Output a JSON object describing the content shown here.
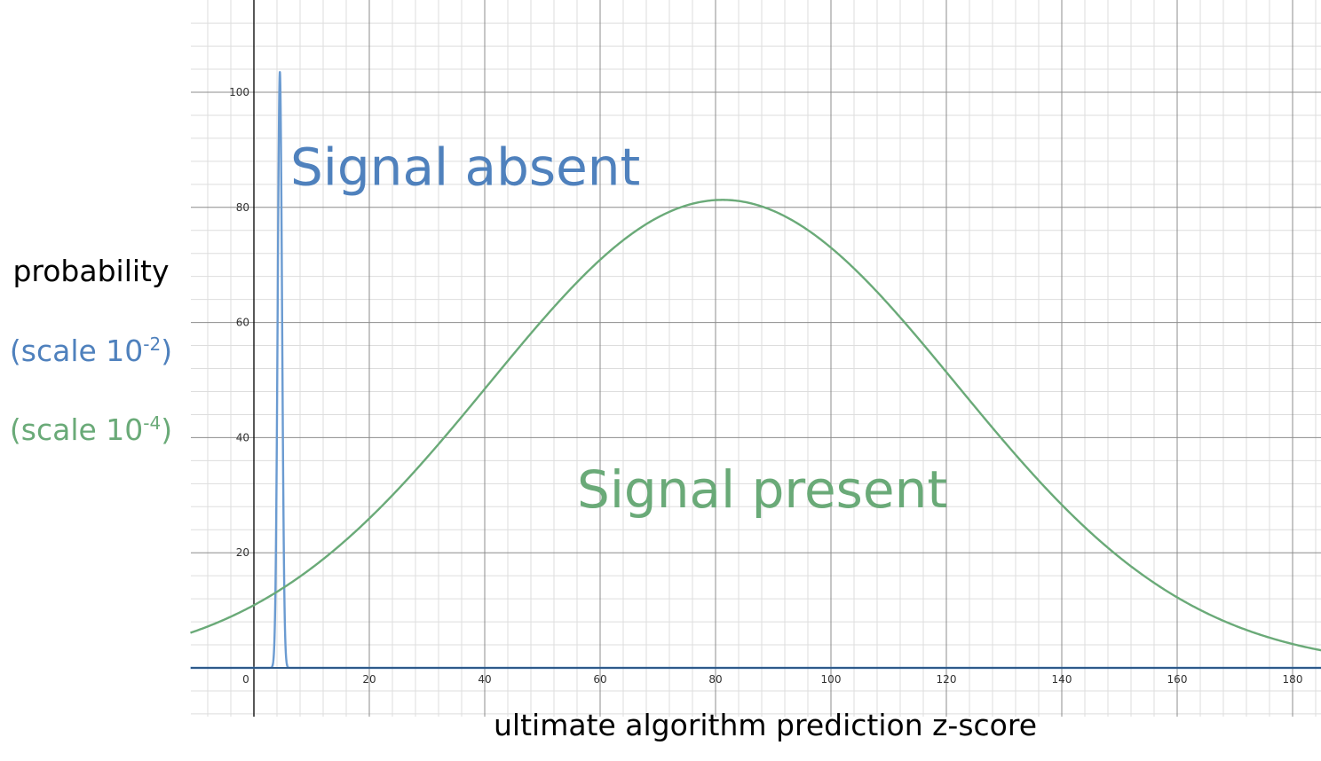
{
  "chart_data": {
    "type": "line",
    "xlabel": "ultimate algorithm prediction z-score",
    "ylabel": "probability",
    "scale_notes": [
      {
        "base": "(scale 10",
        "exp": "-2",
        "close": ")",
        "color": "#4f81bd"
      },
      {
        "base": "(scale 10",
        "exp": "-4",
        "close": ")",
        "color": "#6aaa78"
      }
    ],
    "xlim": [
      -11,
      185
    ],
    "ylim": [
      -8,
      115
    ],
    "x_ticks": [
      "0",
      "20",
      "40",
      "60",
      "80",
      "100",
      "120",
      "140",
      "160",
      "180"
    ],
    "y_ticks": [
      "20",
      "40",
      "60",
      "80",
      "100"
    ],
    "grid": true,
    "series": [
      {
        "name": "Signal absent",
        "color": "#6b9bd1",
        "shape": "gaussian",
        "mean": 4.5,
        "std": 0.38,
        "peak": 103.5
      },
      {
        "name": "Signal present",
        "color": "#6aaa78",
        "shape": "gaussian",
        "mean": 81.2,
        "std": 40.5,
        "peak": 81.3
      }
    ],
    "annotations": [
      {
        "text": "Signal absent",
        "color": "#4f81bd",
        "x": 6.3,
        "y": 87
      },
      {
        "text": "Signal present",
        "color": "#6aaa78",
        "x": 56,
        "y": 31
      }
    ]
  }
}
